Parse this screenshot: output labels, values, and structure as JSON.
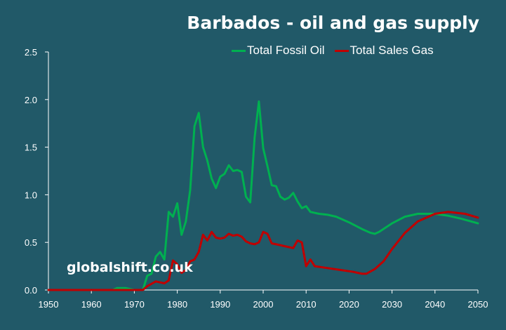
{
  "chart_data": {
    "type": "line",
    "title": "Barbados - oil and gas supply",
    "xlabel": "",
    "ylabel": "",
    "xlim": [
      1950,
      2050
    ],
    "ylim": [
      0,
      2.5
    ],
    "x_ticks": [
      "1950",
      "1960",
      "1970",
      "1980",
      "1990",
      "2000",
      "2010",
      "2020",
      "2030",
      "2040",
      "2050"
    ],
    "y_ticks": [
      "0.0",
      "0.5",
      "1.0",
      "1.5",
      "2.0",
      "2.5"
    ],
    "legend_position": "top-right",
    "grid": false,
    "series": [
      {
        "name": "Total Fossil Oil",
        "color": "#00b050",
        "points": [
          [
            1950,
            0
          ],
          [
            1965,
            0
          ],
          [
            1966,
            0.02
          ],
          [
            1968,
            0.02
          ],
          [
            1970,
            0
          ],
          [
            1972,
            0
          ],
          [
            1973,
            0.15
          ],
          [
            1974,
            0.17
          ],
          [
            1975,
            0.35
          ],
          [
            1976,
            0.4
          ],
          [
            1977,
            0.32
          ],
          [
            1978,
            0.82
          ],
          [
            1979,
            0.77
          ],
          [
            1980,
            0.91
          ],
          [
            1981,
            0.58
          ],
          [
            1982,
            0.72
          ],
          [
            1983,
            1.05
          ],
          [
            1984,
            1.72
          ],
          [
            1985,
            1.86
          ],
          [
            1986,
            1.5
          ],
          [
            1987,
            1.36
          ],
          [
            1988,
            1.17
          ],
          [
            1989,
            1.07
          ],
          [
            1990,
            1.19
          ],
          [
            1991,
            1.22
          ],
          [
            1992,
            1.31
          ],
          [
            1993,
            1.25
          ],
          [
            1994,
            1.26
          ],
          [
            1995,
            1.24
          ],
          [
            1996,
            0.98
          ],
          [
            1997,
            0.92
          ],
          [
            1998,
            1.6
          ],
          [
            1999,
            1.98
          ],
          [
            2000,
            1.49
          ],
          [
            2001,
            1.3
          ],
          [
            2002,
            1.1
          ],
          [
            2003,
            1.09
          ],
          [
            2004,
            0.98
          ],
          [
            2005,
            0.95
          ],
          [
            2006,
            0.97
          ],
          [
            2007,
            1.02
          ],
          [
            2008,
            0.93
          ],
          [
            2009,
            0.86
          ],
          [
            2010,
            0.88
          ],
          [
            2011,
            0.82
          ],
          [
            2013,
            0.8
          ],
          [
            2015,
            0.79
          ],
          [
            2017,
            0.77
          ],
          [
            2020,
            0.71
          ],
          [
            2023,
            0.64
          ],
          [
            2025,
            0.6
          ],
          [
            2026,
            0.59
          ],
          [
            2027,
            0.61
          ],
          [
            2030,
            0.7
          ],
          [
            2033,
            0.77
          ],
          [
            2036,
            0.8
          ],
          [
            2040,
            0.8
          ],
          [
            2043,
            0.78
          ],
          [
            2046,
            0.75
          ],
          [
            2050,
            0.7
          ]
        ]
      },
      {
        "name": "Total Sales Gas",
        "color": "#c00000",
        "points": [
          [
            1950,
            0
          ],
          [
            1972,
            0
          ],
          [
            1973,
            0.04
          ],
          [
            1975,
            0.09
          ],
          [
            1976,
            0.08
          ],
          [
            1977,
            0.07
          ],
          [
            1978,
            0.1
          ],
          [
            1979,
            0.31
          ],
          [
            1980,
            0.27
          ],
          [
            1981,
            0.18
          ],
          [
            1982,
            0.21
          ],
          [
            1983,
            0.3
          ],
          [
            1984,
            0.32
          ],
          [
            1985,
            0.4
          ],
          [
            1986,
            0.58
          ],
          [
            1987,
            0.52
          ],
          [
            1988,
            0.61
          ],
          [
            1989,
            0.55
          ],
          [
            1990,
            0.54
          ],
          [
            1991,
            0.55
          ],
          [
            1992,
            0.59
          ],
          [
            1993,
            0.57
          ],
          [
            1994,
            0.58
          ],
          [
            1995,
            0.56
          ],
          [
            1996,
            0.51
          ],
          [
            1997,
            0.49
          ],
          [
            1998,
            0.48
          ],
          [
            1999,
            0.5
          ],
          [
            2000,
            0.61
          ],
          [
            2001,
            0.59
          ],
          [
            2002,
            0.49
          ],
          [
            2003,
            0.48
          ],
          [
            2005,
            0.46
          ],
          [
            2007,
            0.44
          ],
          [
            2008,
            0.52
          ],
          [
            2009,
            0.5
          ],
          [
            2010,
            0.25
          ],
          [
            2011,
            0.32
          ],
          [
            2012,
            0.25
          ],
          [
            2015,
            0.23
          ],
          [
            2018,
            0.21
          ],
          [
            2021,
            0.19
          ],
          [
            2023,
            0.17
          ],
          [
            2024,
            0.17
          ],
          [
            2026,
            0.22
          ],
          [
            2028,
            0.3
          ],
          [
            2030,
            0.43
          ],
          [
            2033,
            0.6
          ],
          [
            2036,
            0.72
          ],
          [
            2040,
            0.8
          ],
          [
            2043,
            0.82
          ],
          [
            2047,
            0.8
          ],
          [
            2050,
            0.76
          ]
        ]
      }
    ]
  },
  "watermark": "globalshift.co.uk",
  "background_color": "#215968",
  "axis_color": "#ffffff"
}
